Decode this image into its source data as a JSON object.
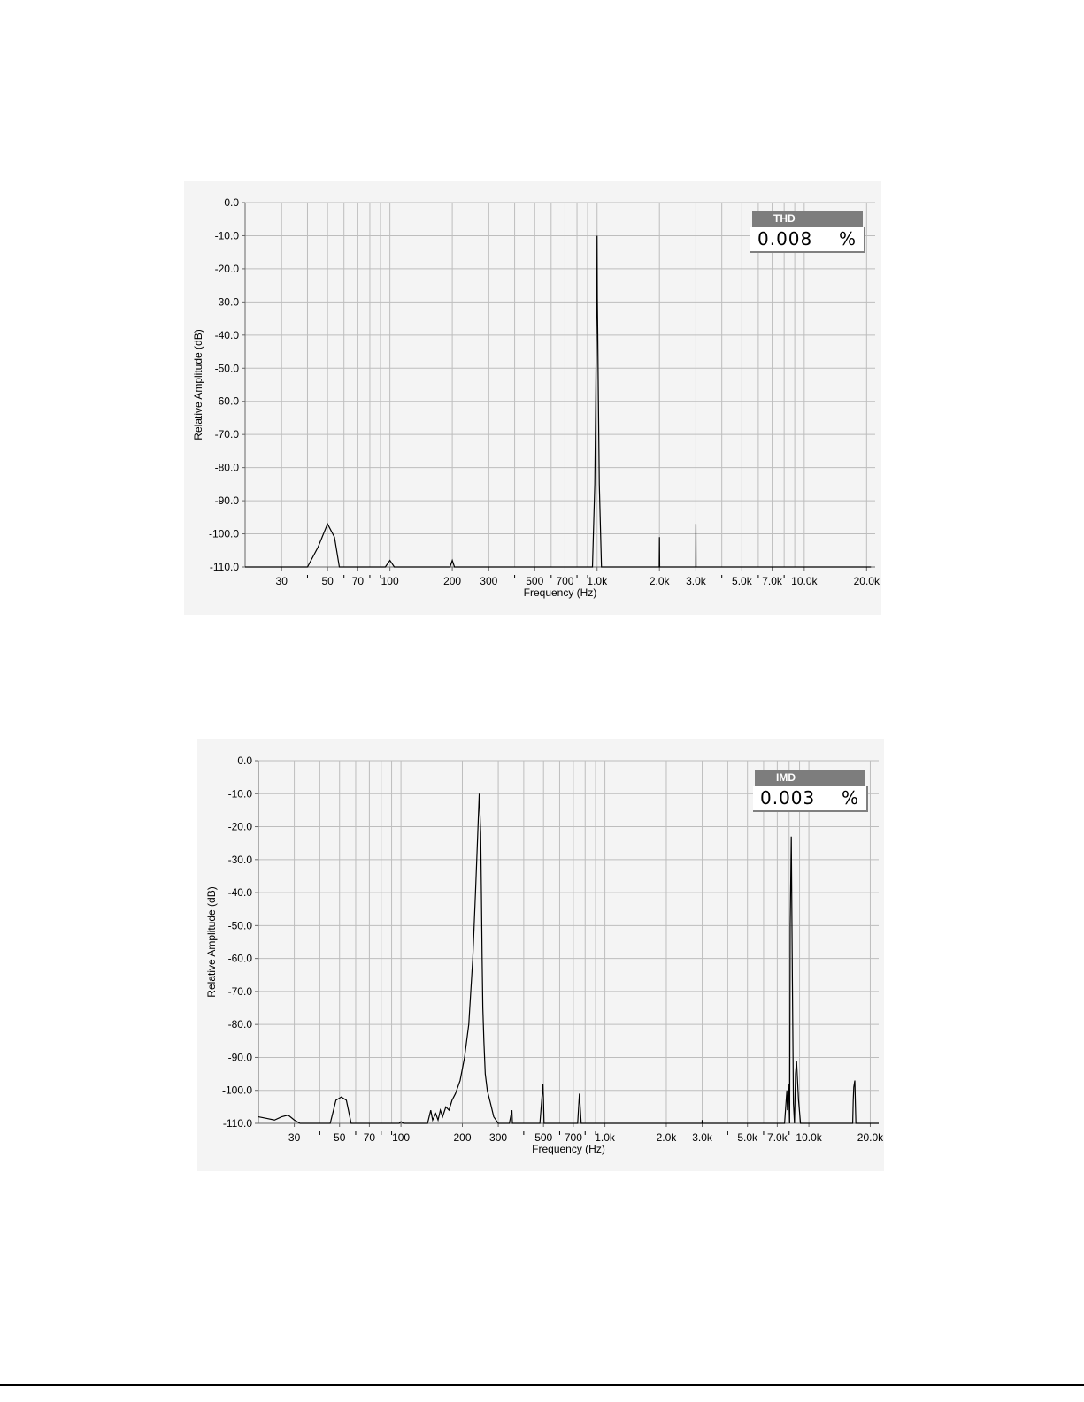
{
  "chart_data": [
    {
      "type": "line",
      "xlabel": "Frequency (Hz)",
      "ylabel": "Relative Amplitude (dB)",
      "x_scale": "log",
      "xlim": [
        20,
        22000
      ],
      "ylim": [
        -110,
        0
      ],
      "grid": true,
      "x_ticks": [
        30,
        50,
        70,
        100,
        200,
        300,
        500,
        700,
        1000,
        2000,
        3000,
        5000,
        7000,
        10000,
        20000
      ],
      "x_tick_labels": [
        "30",
        "50",
        "70",
        "100",
        "200",
        "300",
        "500",
        "700",
        "1.0k",
        "2.0k",
        "3.0k",
        "5.0k",
        "7.0k",
        "10.0k",
        "20.0k"
      ],
      "y_ticks": [
        0,
        -10,
        -20,
        -30,
        -40,
        -50,
        -60,
        -70,
        -80,
        -90,
        -100,
        -110
      ],
      "y_tick_labels": [
        "0.0",
        "-10.0",
        "-20.0",
        "-30.0",
        "-40.0",
        "-50.0",
        "-60.0",
        "-70.0",
        "-80.0",
        "-90.0",
        "-100.0",
        "-110.0"
      ],
      "readout": {
        "label": "THD",
        "value": "0.008",
        "unit": "%"
      },
      "series": [
        {
          "x": [
            20,
            40,
            45,
            50,
            54,
            57,
            95,
            100,
            105,
            195,
            200,
            205,
            950,
            975,
            985,
            993,
            998,
            1000,
            1003,
            1007,
            1015,
            1025,
            1050,
            1960,
            1995,
            2000,
            2005,
            2040,
            2960,
            2995,
            3000,
            3005,
            3040,
            21000
          ],
          "y": [
            -110,
            -110,
            -104,
            -97,
            -101,
            -110,
            -110,
            -108,
            -110,
            -110,
            -108,
            -110,
            -110,
            -85,
            -60,
            -36,
            -29,
            -10,
            -29,
            -38,
            -60,
            -85,
            -110,
            -110,
            -110,
            -101,
            -110,
            -110,
            -110,
            -110,
            -97,
            -110,
            -110,
            -110
          ]
        }
      ]
    },
    {
      "type": "line",
      "xlabel": "Frequency (Hz)",
      "ylabel": "Relative Amplitude (dB)",
      "x_scale": "log",
      "xlim": [
        20,
        22000
      ],
      "ylim": [
        -110,
        0
      ],
      "grid": true,
      "x_ticks": [
        30,
        50,
        70,
        100,
        200,
        300,
        500,
        700,
        1000,
        2000,
        3000,
        5000,
        7000,
        10000,
        20000
      ],
      "x_tick_labels": [
        "30",
        "50",
        "70",
        "100",
        "200",
        "300",
        "500",
        "700",
        "1.0k",
        "2.0k",
        "3.0k",
        "5.0k",
        "7.0k",
        "10.0k",
        "20.0k"
      ],
      "y_ticks": [
        0,
        -10,
        -20,
        -30,
        -40,
        -50,
        -60,
        -70,
        -80,
        -90,
        -100,
        -110
      ],
      "y_tick_labels": [
        "0.0",
        "-10.0",
        "-20.0",
        "-30.0",
        "-40.0",
        "-50.0",
        "-60.0",
        "-70.0",
        "-80.0",
        "-90.0",
        "-100.0",
        "-110.0"
      ],
      "readout": {
        "label": "IMD",
        "value": "0.003",
        "unit": "%"
      },
      "series": [
        {
          "x": [
            20,
            22,
            24,
            26,
            28,
            30,
            32,
            45,
            48,
            51,
            54,
            57,
            95,
            98,
            100,
            103,
            135,
            140,
            143,
            148,
            152,
            156,
            160,
            166,
            172,
            178,
            185,
            195,
            205,
            215,
            225,
            232,
            238,
            242,
            246,
            248,
            250,
            252,
            255,
            259,
            265,
            275,
            285,
            300,
            320,
            340,
            350,
            352,
            360,
            365,
            480,
            490,
            497,
            500,
            503,
            510,
            720,
            735,
            745,
            750,
            755,
            765,
            2950,
            2995,
            3000,
            3005,
            3050,
            7600,
            7800,
            7850,
            7950,
            8050,
            8100,
            8200,
            8300,
            8400,
            8500,
            8600,
            8700,
            8900,
            9100,
            9300,
            16200,
            16400,
            16500,
            16600,
            16800,
            17000,
            22000
          ],
          "y": [
            -108,
            -108.5,
            -109,
            -108,
            -107.5,
            -109,
            -110,
            -110,
            -103,
            -102,
            -103,
            -110,
            -110,
            -110,
            -109.5,
            -110,
            -110,
            -106,
            -109,
            -107,
            -109,
            -106,
            -108,
            -105,
            -106,
            -103,
            -101,
            -97,
            -90,
            -80,
            -60,
            -40,
            -22,
            -10,
            -22,
            -40,
            -60,
            -75,
            -85,
            -95,
            -100,
            -104,
            -108,
            -110,
            -110,
            -110,
            -106,
            -110,
            -110,
            -110,
            -110,
            -103,
            -98,
            -103,
            -110,
            -110,
            -110,
            -110,
            -104,
            -101,
            -104,
            -110,
            -110,
            -110,
            -109,
            -110,
            -110,
            -110,
            -100,
            -106,
            -98,
            -110,
            -50,
            -23,
            -66,
            -104,
            -110,
            -95,
            -91,
            -103,
            -110,
            -110,
            -110,
            -110,
            -103,
            -99,
            -97,
            -110,
            -110
          ]
        }
      ]
    }
  ]
}
